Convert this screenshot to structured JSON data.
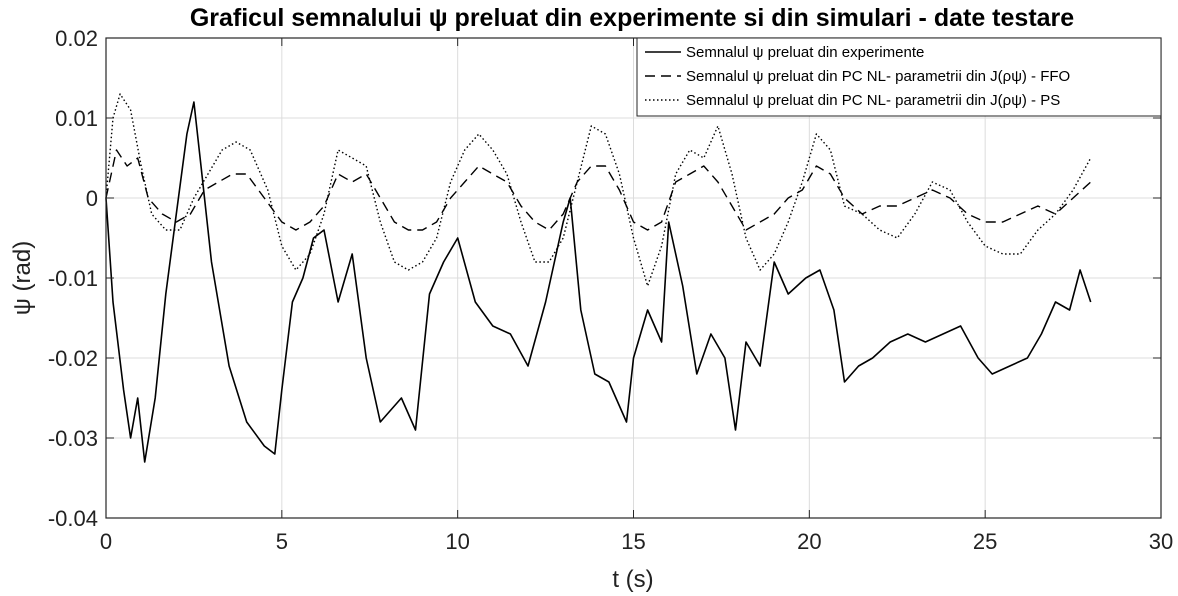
{
  "chart_data": {
    "type": "line",
    "title": "Graficul semnalului ψ preluat din experimente si din simulari - date testare",
    "xlabel": "t (s)",
    "ylabel": "ψ (rad)",
    "xlim": [
      0,
      30
    ],
    "ylim": [
      -0.04,
      0.02
    ],
    "x_ticks": [
      "0",
      "5",
      "10",
      "15",
      "20",
      "25",
      "30"
    ],
    "y_ticks": [
      "0.02",
      "0.01",
      "0",
      "-0.01",
      "-0.02",
      "-0.03",
      "-0.04"
    ],
    "grid": true,
    "legend_position": "top-right",
    "series": [
      {
        "name": "Semnalul ψ preluat din experimente",
        "style": "solid",
        "color": "#000000",
        "x": [
          0,
          0.2,
          0.5,
          0.7,
          0.9,
          1.1,
          1.4,
          1.7,
          2.0,
          2.3,
          2.5,
          2.7,
          3.0,
          3.5,
          4.0,
          4.5,
          4.8,
          5.0,
          5.3,
          5.6,
          5.9,
          6.2,
          6.6,
          7.0,
          7.4,
          7.8,
          8.0,
          8.4,
          8.8,
          9.2,
          9.6,
          10.0,
          10.5,
          11.0,
          11.5,
          12.0,
          12.5,
          13.0,
          13.2,
          13.5,
          13.9,
          14.3,
          14.8,
          15.0,
          15.4,
          15.8,
          16.0,
          16.4,
          16.8,
          17.2,
          17.6,
          17.9,
          18.2,
          18.6,
          19.0,
          19.4,
          19.9,
          20.3,
          20.7,
          21.0,
          21.4,
          21.8,
          22.3,
          22.8,
          23.3,
          23.8,
          24.3,
          24.8,
          25.2,
          25.7,
          26.2,
          26.6,
          27.0,
          27.4,
          27.7,
          28.0
        ],
        "y": [
          0,
          -0.013,
          -0.024,
          -0.03,
          -0.025,
          -0.033,
          -0.025,
          -0.012,
          -0.002,
          0.008,
          0.012,
          0.004,
          -0.008,
          -0.021,
          -0.028,
          -0.031,
          -0.032,
          -0.024,
          -0.013,
          -0.01,
          -0.005,
          -0.004,
          -0.013,
          -0.007,
          -0.02,
          -0.028,
          -0.027,
          -0.025,
          -0.029,
          -0.012,
          -0.008,
          -0.005,
          -0.013,
          -0.016,
          -0.017,
          -0.021,
          -0.013,
          -0.003,
          0.0,
          -0.014,
          -0.022,
          -0.023,
          -0.028,
          -0.02,
          -0.014,
          -0.018,
          -0.003,
          -0.011,
          -0.022,
          -0.017,
          -0.02,
          -0.029,
          -0.018,
          -0.021,
          -0.008,
          -0.012,
          -0.01,
          -0.009,
          -0.014,
          -0.023,
          -0.021,
          -0.02,
          -0.018,
          -0.017,
          -0.018,
          -0.017,
          -0.016,
          -0.02,
          -0.022,
          -0.021,
          -0.02,
          -0.017,
          -0.013,
          -0.014,
          -0.009,
          -0.013
        ]
      },
      {
        "name": "Semnalul ψ preluat din PC NL- parametrii din J(ρψ) - FFO",
        "style": "dashed",
        "color": "#000000",
        "x": [
          0,
          0.3,
          0.6,
          0.9,
          1.2,
          1.6,
          2.0,
          2.4,
          2.8,
          3.2,
          3.6,
          4.0,
          4.5,
          5.0,
          5.4,
          5.8,
          6.2,
          6.6,
          7.0,
          7.4,
          7.8,
          8.2,
          8.6,
          9.0,
          9.4,
          9.8,
          10.2,
          10.6,
          11.0,
          11.4,
          11.8,
          12.2,
          12.6,
          13.0,
          13.4,
          13.8,
          14.2,
          14.6,
          15.0,
          15.4,
          15.8,
          16.2,
          16.6,
          17.0,
          17.4,
          17.8,
          18.2,
          18.6,
          19.0,
          19.4,
          19.8,
          20.2,
          20.6,
          21.0,
          21.5,
          22.0,
          22.5,
          23.0,
          23.5,
          24.0,
          24.5,
          25.0,
          25.5,
          26.0,
          26.5,
          27.0,
          27.5,
          28.0
        ],
        "y": [
          0,
          0.006,
          0.004,
          0.005,
          0.0,
          -0.002,
          -0.003,
          -0.002,
          0.001,
          0.002,
          0.003,
          0.003,
          0.0,
          -0.003,
          -0.004,
          -0.003,
          -0.001,
          0.003,
          0.002,
          0.003,
          0.0,
          -0.003,
          -0.004,
          -0.004,
          -0.003,
          0.0,
          0.002,
          0.004,
          0.003,
          0.002,
          -0.001,
          -0.003,
          -0.004,
          -0.002,
          0.002,
          0.004,
          0.004,
          0.001,
          -0.003,
          -0.004,
          -0.003,
          0.002,
          0.003,
          0.004,
          0.002,
          -0.001,
          -0.004,
          -0.003,
          -0.002,
          0.0,
          0.001,
          0.004,
          0.003,
          0.0,
          -0.002,
          -0.001,
          -0.001,
          0.0,
          0.001,
          0.0,
          -0.002,
          -0.003,
          -0.003,
          -0.002,
          -0.001,
          -0.002,
          0.0,
          0.002
        ]
      },
      {
        "name": "Semnalul ψ preluat din PC NL- parametrii din J(ρψ) - PS",
        "style": "dotted",
        "color": "#000000",
        "x": [
          0,
          0.2,
          0.4,
          0.7,
          1.0,
          1.3,
          1.7,
          2.1,
          2.5,
          2.9,
          3.3,
          3.7,
          4.1,
          4.6,
          5.0,
          5.4,
          5.8,
          6.2,
          6.6,
          7.0,
          7.4,
          7.8,
          8.2,
          8.6,
          9.0,
          9.4,
          9.8,
          10.2,
          10.6,
          11.0,
          11.4,
          11.8,
          12.2,
          12.6,
          13.0,
          13.4,
          13.8,
          14.2,
          14.6,
          15.0,
          15.4,
          15.8,
          16.2,
          16.6,
          17.0,
          17.4,
          17.8,
          18.2,
          18.6,
          19.0,
          19.4,
          19.8,
          20.2,
          20.6,
          21.0,
          21.5,
          22.0,
          22.5,
          23.0,
          23.5,
          24.0,
          24.5,
          25.0,
          25.5,
          26.0,
          26.5,
          27.0,
          27.5,
          28.0
        ],
        "y": [
          0,
          0.01,
          0.013,
          0.011,
          0.004,
          -0.002,
          -0.004,
          -0.004,
          0.0,
          0.003,
          0.006,
          0.007,
          0.006,
          0.001,
          -0.006,
          -0.009,
          -0.007,
          -0.002,
          0.006,
          0.005,
          0.004,
          -0.003,
          -0.008,
          -0.009,
          -0.008,
          -0.005,
          0.002,
          0.006,
          0.008,
          0.006,
          0.003,
          -0.003,
          -0.008,
          -0.008,
          -0.005,
          0.002,
          0.009,
          0.008,
          0.003,
          -0.005,
          -0.011,
          -0.006,
          0.003,
          0.006,
          0.005,
          0.009,
          0.003,
          -0.005,
          -0.009,
          -0.007,
          -0.003,
          0.002,
          0.008,
          0.006,
          -0.001,
          -0.002,
          -0.004,
          -0.005,
          -0.002,
          0.002,
          0.001,
          -0.003,
          -0.006,
          -0.007,
          -0.007,
          -0.004,
          -0.002,
          0.001,
          0.005
        ]
      }
    ]
  }
}
